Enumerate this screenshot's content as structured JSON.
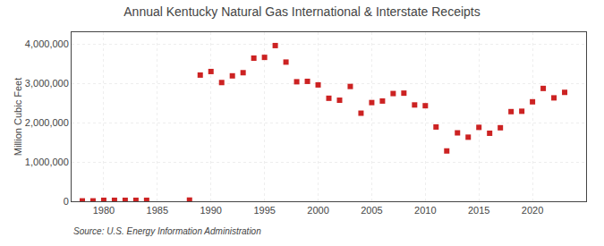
{
  "chart_data": {
    "type": "scatter",
    "title": "Annual Kentucky Natural Gas International & Interstate Receipts",
    "ylabel": "Million Cubic Feet",
    "annotations": [
      "Source: U.S. Energy Information Administration"
    ],
    "x": [
      1978,
      1979,
      1980,
      1981,
      1982,
      1983,
      1984,
      1988,
      1989,
      1990,
      1991,
      1992,
      1993,
      1994,
      1995,
      1996,
      1997,
      1998,
      1999,
      2000,
      2001,
      2002,
      2003,
      2004,
      2005,
      2006,
      2007,
      2008,
      2009,
      2010,
      2011,
      2012,
      2013,
      2014,
      2015,
      2016,
      2017,
      2018,
      2019,
      2020,
      2021,
      2022,
      2023
    ],
    "values": [
      10000,
      10000,
      25000,
      25000,
      25000,
      25000,
      25000,
      30000,
      3210000,
      3300000,
      3020000,
      3190000,
      3270000,
      3640000,
      3660000,
      3960000,
      3540000,
      3040000,
      3050000,
      2960000,
      2620000,
      2570000,
      2920000,
      2240000,
      2510000,
      2550000,
      2740000,
      2750000,
      2450000,
      2430000,
      1890000,
      1280000,
      1740000,
      1630000,
      1880000,
      1730000,
      1870000,
      2280000,
      2290000,
      2530000,
      2870000,
      2630000,
      2770000
    ],
    "color": "#cc2222",
    "marker": "square",
    "xlim": [
      1977,
      2025
    ],
    "ylim": [
      0,
      4300000
    ],
    "xticks": [
      1980,
      1985,
      1990,
      1995,
      2000,
      2005,
      2010,
      2015,
      2020
    ],
    "yticks": [
      0,
      {
        "value": 1000000,
        "label": "1,000,000"
      },
      {
        "value": 2000000,
        "label": "2,000,000"
      },
      {
        "value": 3000000,
        "label": "3,000,000"
      },
      {
        "value": 4000000,
        "label": "4,000,000"
      }
    ],
    "grid": true
  }
}
